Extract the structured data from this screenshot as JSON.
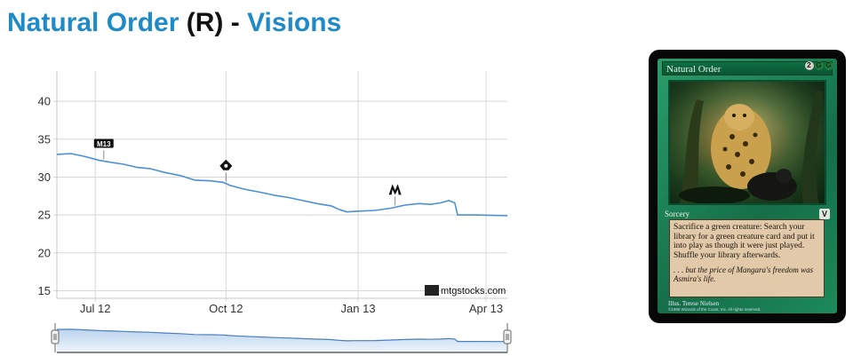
{
  "header": {
    "card_name": "Natural Order",
    "rarity": "(R)",
    "separator": "-",
    "set_name": "Visions"
  },
  "chart_data": {
    "type": "line",
    "x_tick_labels": [
      "Jul 12",
      "Oct 12",
      "Jan 13",
      "Apr 13"
    ],
    "x_ticks": [
      "2012-07-12",
      "2012-10-12",
      "2013-01-13",
      "2013-04-13"
    ],
    "x_range": [
      "2012-06-15",
      "2013-04-28"
    ],
    "ylim": [
      14,
      44
    ],
    "y_ticks": [
      15,
      20,
      25,
      30,
      35,
      40
    ],
    "grid": true,
    "watermark": "mtgstocks.com",
    "series": [
      {
        "color": "#4a90d9",
        "points": [
          [
            "2012-06-15",
            33.0
          ],
          [
            "2012-06-25",
            33.1
          ],
          [
            "2012-07-05",
            32.7
          ],
          [
            "2012-07-15",
            32.2
          ],
          [
            "2012-07-25",
            31.9
          ],
          [
            "2012-08-01",
            31.7
          ],
          [
            "2012-08-10",
            31.3
          ],
          [
            "2012-08-20",
            31.1
          ],
          [
            "2012-08-30",
            30.6
          ],
          [
            "2012-09-10",
            30.2
          ],
          [
            "2012-09-20",
            29.6
          ],
          [
            "2012-10-01",
            29.5
          ],
          [
            "2012-10-10",
            29.3
          ],
          [
            "2012-10-15",
            28.9
          ],
          [
            "2012-10-25",
            28.4
          ],
          [
            "2012-11-05",
            28.0
          ],
          [
            "2012-11-15",
            27.6
          ],
          [
            "2012-11-25",
            27.3
          ],
          [
            "2012-12-05",
            26.9
          ],
          [
            "2012-12-15",
            26.5
          ],
          [
            "2012-12-25",
            26.2
          ],
          [
            "2012-12-31",
            25.7
          ],
          [
            "2013-01-05",
            25.4
          ],
          [
            "2013-01-12",
            25.5
          ],
          [
            "2013-01-25",
            25.6
          ],
          [
            "2013-02-05",
            25.9
          ],
          [
            "2013-02-15",
            26.3
          ],
          [
            "2013-02-25",
            26.5
          ],
          [
            "2013-03-05",
            26.4
          ],
          [
            "2013-03-12",
            26.6
          ],
          [
            "2013-03-18",
            26.9
          ],
          [
            "2013-03-22",
            26.6
          ],
          [
            "2013-03-24",
            25.0
          ],
          [
            "2013-04-05",
            25.0
          ],
          [
            "2013-04-28",
            24.9
          ]
        ]
      }
    ],
    "set_markers": [
      {
        "date": "2012-07-18",
        "symbol": "M13"
      },
      {
        "date": "2012-10-12",
        "symbol": "RTR"
      },
      {
        "date": "2013-02-08",
        "symbol": "GTC"
      }
    ],
    "navigator": {
      "handles": [
        "left",
        "right"
      ]
    }
  },
  "card": {
    "name": "Natural Order",
    "cost_generic": "2",
    "cost_colored": [
      "G",
      "G"
    ],
    "type_line": "Sorcery",
    "set_symbol": "V",
    "rules_text": "Sacrifice a green creature: Search your library for a green creature card and put it into play as though it were just played. Shuffle your library afterwards.",
    "flavor_text": ". . . but the price of Mangara's freedom was Asmira's life.",
    "illustrator": "Illus. Terese Nielsen",
    "copyright": "©1996 Wizards of the Coast, Inc. All rights reserved."
  },
  "colors": {
    "title_blue": "#1f8ac8",
    "line_blue": "#4a90d9",
    "grid": "#d8d8d8",
    "card_green": "#1b8a5c"
  }
}
